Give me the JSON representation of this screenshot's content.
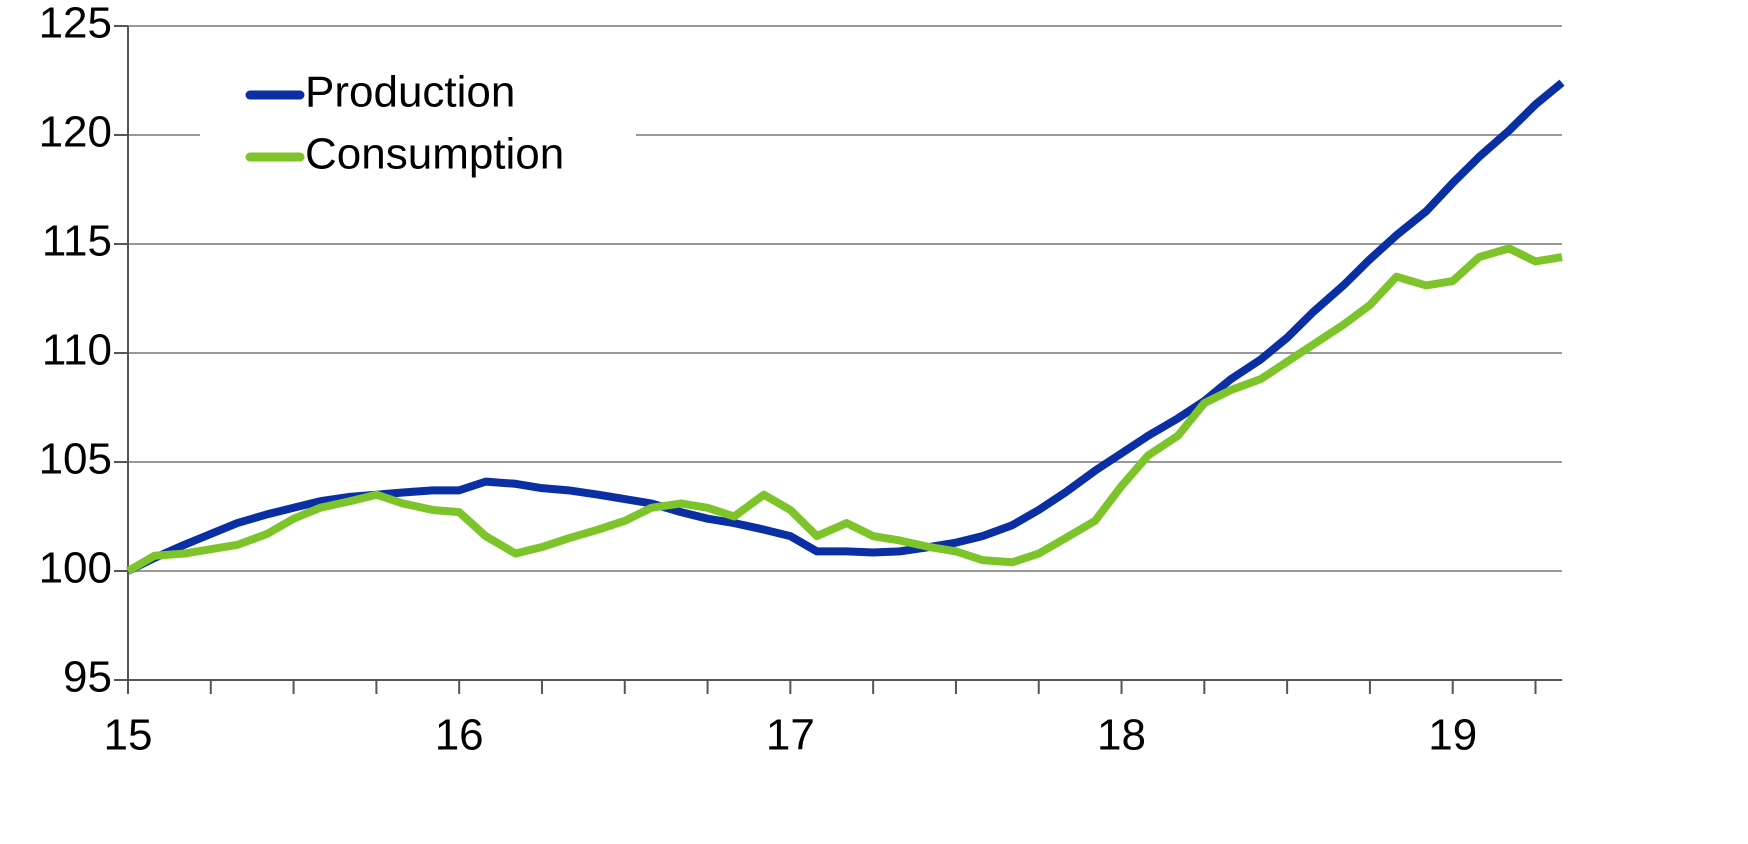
{
  "chart_data": {
    "type": "line",
    "x": [
      15,
      15.08,
      15.17,
      15.25,
      15.33,
      15.42,
      15.5,
      15.58,
      15.67,
      15.75,
      15.83,
      15.92,
      16,
      16.08,
      16.17,
      16.25,
      16.33,
      16.42,
      16.5,
      16.58,
      16.67,
      16.75,
      16.83,
      16.92,
      17,
      17.08,
      17.17,
      17.25,
      17.33,
      17.42,
      17.5,
      17.58,
      17.67,
      17.75,
      17.83,
      17.92,
      18,
      18.08,
      18.17,
      18.25,
      18.33,
      18.42,
      18.5,
      18.58,
      18.67,
      18.75,
      18.83,
      18.92,
      19,
      19.08,
      19.17,
      19.25,
      19.33
    ],
    "series": [
      {
        "name": "Production",
        "color": "#0a2ea4",
        "values": [
          100,
          100.6,
          101.2,
          101.7,
          102.2,
          102.6,
          102.9,
          103.2,
          103.4,
          103.5,
          103.6,
          103.7,
          103.7,
          104.1,
          104.0,
          103.8,
          103.7,
          103.5,
          103.3,
          103.1,
          102.7,
          102.4,
          102.2,
          101.9,
          101.6,
          100.9,
          100.9,
          100.85,
          100.9,
          101.1,
          101.3,
          101.6,
          102.1,
          102.8,
          103.6,
          104.6,
          105.4,
          106.2,
          107.0,
          107.8,
          108.8,
          109.7,
          110.7,
          111.9,
          113.1,
          114.3,
          115.4,
          116.5,
          117.8,
          119.0,
          120.2,
          121.4,
          122.4
        ]
      },
      {
        "name": "Consumption",
        "color": "#7dc42a",
        "values": [
          100,
          100.7,
          100.8,
          101.0,
          101.2,
          101.7,
          102.4,
          102.9,
          103.2,
          103.5,
          103.1,
          102.8,
          102.7,
          101.6,
          100.8,
          101.1,
          101.5,
          101.9,
          102.3,
          102.9,
          103.1,
          102.9,
          102.5,
          103.5,
          102.8,
          101.6,
          102.2,
          101.6,
          101.4,
          101.1,
          100.9,
          100.5,
          100.4,
          100.8,
          101.5,
          102.3,
          103.9,
          105.3,
          106.2,
          107.7,
          108.3,
          108.8,
          109.6,
          110.4,
          111.3,
          112.2,
          113.5,
          113.1,
          113.3,
          114.4,
          114.8,
          114.2,
          114.4
        ]
      }
    ],
    "xlim": [
      15,
      19.33
    ],
    "xticks": [
      15,
      16,
      17,
      18,
      19
    ],
    "xminorticks": [
      15.25,
      15.5,
      15.75,
      16.25,
      16.5,
      16.75,
      17.25,
      17.5,
      17.75,
      18.25,
      18.5,
      18.75,
      19.25
    ],
    "ylim": [
      95,
      125
    ],
    "yticks": [
      95,
      100,
      105,
      110,
      115,
      120,
      125
    ],
    "grid": true,
    "legend": "upper left"
  }
}
